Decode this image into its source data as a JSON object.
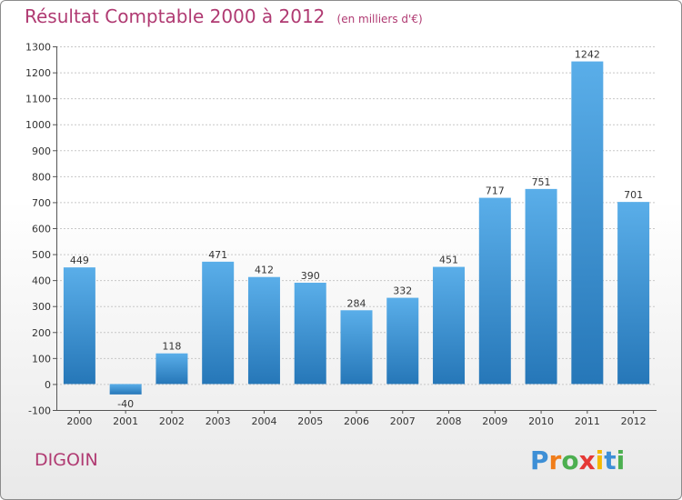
{
  "title": "Résultat Comptable 2000 à 2012",
  "subtitle": "(en milliers d'€)",
  "city": "DIGOIN",
  "logo": {
    "text": "Proxiti",
    "letters": [
      "P",
      "r",
      "o",
      "x",
      "i",
      "t",
      "i"
    ],
    "colors": [
      "#3d8fd6",
      "#f07d1a",
      "#4caf50",
      "#e53935",
      "#f5b800",
      "#3d8fd6",
      "#4caf50"
    ]
  },
  "colors": {
    "bar_top": "#5aaee9",
    "bar_bottom": "#2677b8",
    "title": "#b03a72"
  },
  "chart_data": {
    "type": "bar",
    "title": "Résultat Comptable 2000 à 2012",
    "categories": [
      "2000",
      "2001",
      "2002",
      "2003",
      "2004",
      "2005",
      "2006",
      "2007",
      "2008",
      "2009",
      "2010",
      "2011",
      "2012"
    ],
    "values": [
      449,
      -40,
      118,
      471,
      412,
      390,
      284,
      332,
      451,
      717,
      751,
      1242,
      701
    ],
    "ylim": [
      -100,
      1300
    ],
    "yticks": [
      -100,
      0,
      100,
      200,
      300,
      400,
      500,
      600,
      700,
      800,
      900,
      1000,
      1100,
      1200,
      1300
    ],
    "grid": true,
    "xlabel": "",
    "ylabel": ""
  }
}
